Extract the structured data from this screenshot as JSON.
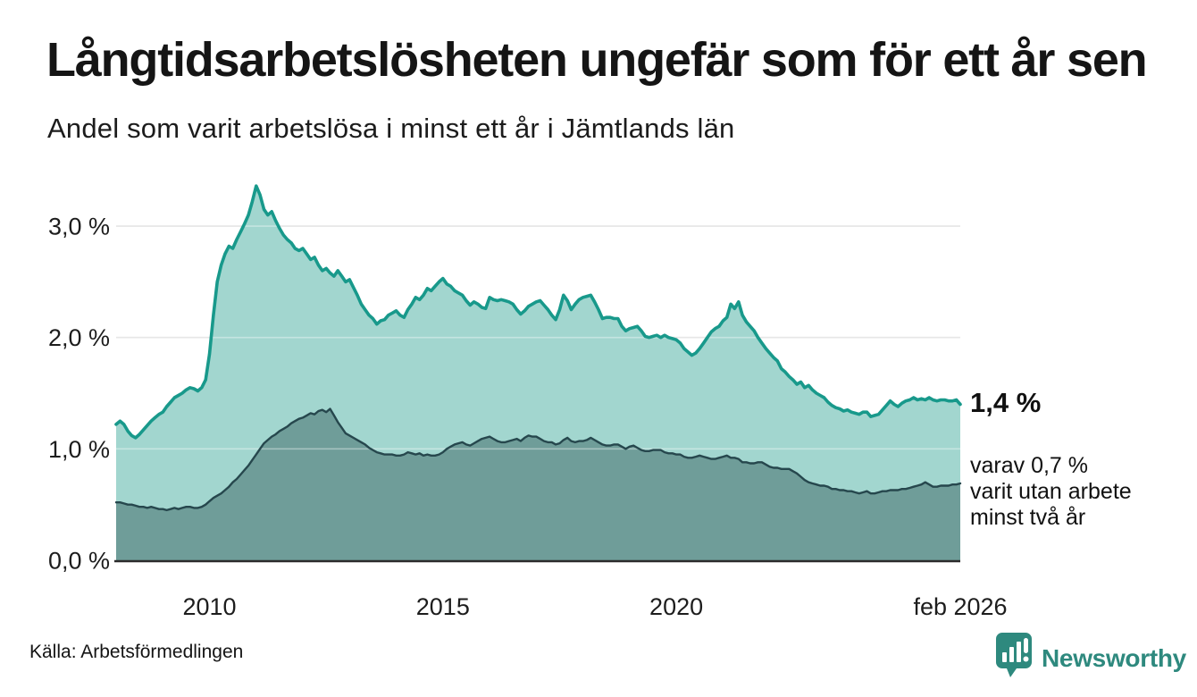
{
  "header": {
    "title": "Långtidsarbetslösheten ungefär som för ett år sen",
    "subtitle": "Andel som varit arbetslösa i minst ett år i Jämtlands län"
  },
  "annotation": {
    "value_label": "1,4 %",
    "detail_lines": [
      "varav 0,7 %",
      "varit utan arbete",
      "minst två år"
    ]
  },
  "footer": {
    "source": "Källa: Arbetsförmedlingen",
    "logo_text": "Newsworthy"
  },
  "colors": {
    "accent_teal": "#18998b",
    "fill_light": "#a2d6cf",
    "line_dark": "#26474d",
    "fill_dark": "#6f9d99",
    "grid": "#d9d9d9",
    "axis": "#2b2b2b",
    "logo": "#2e897e"
  },
  "chart_data": {
    "type": "area",
    "title": "Långtidsarbetslösheten ungefär som för ett år sen",
    "subtitle": "Andel som varit arbetslösa i minst ett år i Jämtlands län",
    "unit": "%",
    "frequency": "monthly",
    "x_start": "2008-01",
    "x_end": "2026-02",
    "ylim": [
      0,
      3.5
    ],
    "grid": "horizontal",
    "legend": "none",
    "yticks": [
      {
        "value": 0,
        "label": "0,0 %"
      },
      {
        "value": 1,
        "label": "1,0 %"
      },
      {
        "value": 2,
        "label": "2,0 %"
      },
      {
        "value": 3,
        "label": "3,0 %"
      }
    ],
    "xticks": [
      {
        "label": "2010",
        "month_index": 24
      },
      {
        "label": "2015",
        "month_index": 84
      },
      {
        "label": "2020",
        "month_index": 144
      },
      {
        "label": "feb 2026",
        "month_index": 217
      }
    ],
    "series": [
      {
        "name": "Arbetslösa minst ett år",
        "end_label": "1,4 %",
        "values": [
          1.22,
          1.25,
          1.22,
          1.16,
          1.12,
          1.1,
          1.13,
          1.17,
          1.21,
          1.25,
          1.28,
          1.31,
          1.33,
          1.38,
          1.42,
          1.46,
          1.48,
          1.5,
          1.53,
          1.55,
          1.54,
          1.52,
          1.55,
          1.62,
          1.85,
          2.2,
          2.5,
          2.65,
          2.75,
          2.82,
          2.8,
          2.88,
          2.95,
          3.02,
          3.1,
          3.22,
          3.36,
          3.28,
          3.15,
          3.1,
          3.13,
          3.05,
          2.98,
          2.92,
          2.88,
          2.85,
          2.8,
          2.78,
          2.8,
          2.75,
          2.7,
          2.72,
          2.65,
          2.6,
          2.62,
          2.58,
          2.55,
          2.6,
          2.55,
          2.5,
          2.52,
          2.45,
          2.38,
          2.3,
          2.25,
          2.2,
          2.17,
          2.12,
          2.15,
          2.16,
          2.2,
          2.22,
          2.24,
          2.2,
          2.18,
          2.25,
          2.3,
          2.36,
          2.34,
          2.38,
          2.44,
          2.42,
          2.46,
          2.5,
          2.53,
          2.48,
          2.46,
          2.42,
          2.4,
          2.38,
          2.33,
          2.29,
          2.32,
          2.3,
          2.27,
          2.26,
          2.36,
          2.34,
          2.33,
          2.34,
          2.33,
          2.32,
          2.3,
          2.25,
          2.21,
          2.24,
          2.28,
          2.3,
          2.32,
          2.33,
          2.29,
          2.25,
          2.2,
          2.16,
          2.25,
          2.38,
          2.33,
          2.25,
          2.3,
          2.34,
          2.36,
          2.37,
          2.38,
          2.32,
          2.25,
          2.17,
          2.18,
          2.18,
          2.17,
          2.17,
          2.1,
          2.06,
          2.08,
          2.09,
          2.1,
          2.06,
          2.01,
          2.0,
          2.01,
          2.02,
          2.0,
          2.02,
          2.0,
          1.99,
          1.98,
          1.95,
          1.9,
          1.87,
          1.84,
          1.86,
          1.9,
          1.95,
          2.0,
          2.05,
          2.08,
          2.1,
          2.15,
          2.18,
          2.3,
          2.26,
          2.32,
          2.2,
          2.14,
          2.1,
          2.06,
          2.0,
          1.95,
          1.9,
          1.86,
          1.82,
          1.79,
          1.72,
          1.69,
          1.65,
          1.62,
          1.58,
          1.6,
          1.55,
          1.57,
          1.53,
          1.5,
          1.48,
          1.46,
          1.42,
          1.39,
          1.37,
          1.36,
          1.34,
          1.35,
          1.33,
          1.32,
          1.31,
          1.33,
          1.33,
          1.29,
          1.3,
          1.31,
          1.35,
          1.39,
          1.43,
          1.4,
          1.38,
          1.41,
          1.43,
          1.44,
          1.46,
          1.44,
          1.45,
          1.44,
          1.46,
          1.44,
          1.43,
          1.44,
          1.44,
          1.43,
          1.43,
          1.44,
          1.4
        ]
      },
      {
        "name": "Arbetslösa minst två år",
        "end_label": "0,7 %",
        "values": [
          0.52,
          0.52,
          0.51,
          0.5,
          0.5,
          0.49,
          0.48,
          0.48,
          0.47,
          0.48,
          0.47,
          0.46,
          0.46,
          0.45,
          0.46,
          0.47,
          0.46,
          0.47,
          0.48,
          0.48,
          0.47,
          0.47,
          0.48,
          0.5,
          0.53,
          0.56,
          0.58,
          0.6,
          0.63,
          0.66,
          0.7,
          0.73,
          0.77,
          0.81,
          0.85,
          0.9,
          0.95,
          1.0,
          1.05,
          1.08,
          1.11,
          1.13,
          1.16,
          1.18,
          1.2,
          1.23,
          1.25,
          1.27,
          1.28,
          1.3,
          1.32,
          1.31,
          1.34,
          1.35,
          1.33,
          1.36,
          1.3,
          1.24,
          1.19,
          1.14,
          1.12,
          1.1,
          1.08,
          1.06,
          1.04,
          1.01,
          0.99,
          0.97,
          0.96,
          0.95,
          0.95,
          0.95,
          0.94,
          0.94,
          0.95,
          0.97,
          0.96,
          0.95,
          0.96,
          0.94,
          0.95,
          0.94,
          0.94,
          0.95,
          0.97,
          1.0,
          1.02,
          1.04,
          1.05,
          1.06,
          1.04,
          1.03,
          1.05,
          1.07,
          1.09,
          1.1,
          1.11,
          1.09,
          1.07,
          1.06,
          1.06,
          1.07,
          1.08,
          1.09,
          1.07,
          1.1,
          1.12,
          1.11,
          1.11,
          1.09,
          1.07,
          1.06,
          1.06,
          1.04,
          1.05,
          1.08,
          1.1,
          1.07,
          1.06,
          1.07,
          1.07,
          1.08,
          1.1,
          1.08,
          1.06,
          1.04,
          1.03,
          1.03,
          1.04,
          1.04,
          1.02,
          1.0,
          1.02,
          1.03,
          1.01,
          0.99,
          0.98,
          0.98,
          0.99,
          0.99,
          0.99,
          0.97,
          0.96,
          0.96,
          0.95,
          0.95,
          0.93,
          0.92,
          0.92,
          0.93,
          0.94,
          0.93,
          0.92,
          0.91,
          0.91,
          0.92,
          0.93,
          0.94,
          0.92,
          0.92,
          0.91,
          0.88,
          0.88,
          0.87,
          0.87,
          0.88,
          0.88,
          0.86,
          0.84,
          0.83,
          0.83,
          0.82,
          0.82,
          0.82,
          0.8,
          0.78,
          0.75,
          0.72,
          0.7,
          0.69,
          0.68,
          0.67,
          0.67,
          0.66,
          0.64,
          0.64,
          0.63,
          0.63,
          0.62,
          0.62,
          0.61,
          0.6,
          0.61,
          0.62,
          0.6,
          0.6,
          0.61,
          0.62,
          0.62,
          0.63,
          0.63,
          0.63,
          0.64,
          0.64,
          0.65,
          0.66,
          0.67,
          0.68,
          0.7,
          0.68,
          0.66,
          0.66,
          0.67,
          0.67,
          0.67,
          0.68,
          0.68,
          0.69
        ]
      }
    ]
  }
}
